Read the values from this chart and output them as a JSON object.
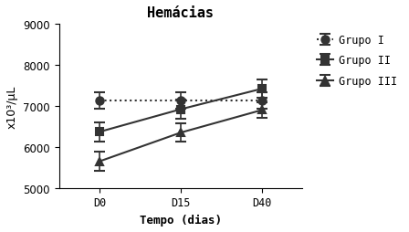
{
  "title": "Hemácias",
  "xlabel": "Tempo (dias)",
  "ylabel": "x10³/µL",
  "x_labels": [
    "D0",
    "D15",
    "D40"
  ],
  "x_values": [
    0,
    1,
    2
  ],
  "grupo1": {
    "label": "Grupo I",
    "y": [
      7130,
      7130,
      7130
    ],
    "yerr": [
      200,
      200,
      200
    ],
    "linestyle": "dotted",
    "marker": "o",
    "color": "#333333",
    "fillstyle": "full"
  },
  "grupo2": {
    "label": "Grupo II",
    "y": [
      6370,
      6920,
      7420
    ],
    "yerr": [
      230,
      230,
      230
    ],
    "linestyle": "solid",
    "marker": "s",
    "color": "#333333",
    "fillstyle": "full"
  },
  "grupo3": {
    "label": "Grupo III",
    "y": [
      5650,
      6350,
      6900
    ],
    "yerr": [
      230,
      230,
      200
    ],
    "linestyle": "solid",
    "marker": "^",
    "color": "#333333",
    "fillstyle": "full"
  },
  "ylim": [
    5000,
    9000
  ],
  "yticks": [
    5000,
    6000,
    7000,
    8000,
    9000
  ],
  "bg_color": "#ffffff",
  "legend_fontsize": 8.5,
  "title_fontsize": 11,
  "label_fontsize": 9,
  "tick_fontsize": 8.5
}
